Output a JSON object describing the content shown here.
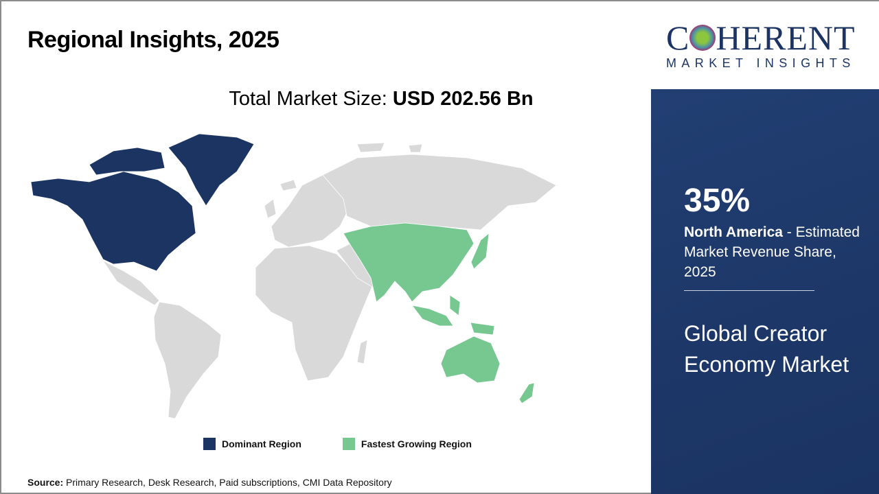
{
  "header": {
    "title": "Regional Insights, 2025"
  },
  "total": {
    "label": "Total Market Size: ",
    "value": "USD 202.56 Bn"
  },
  "map": {
    "regions": [
      {
        "name": "North America",
        "category": "dominant"
      },
      {
        "name": "Asia Pacific",
        "category": "fastest-growing"
      }
    ],
    "colors": {
      "dominant": "#1b3461",
      "fastest": "#77c791",
      "other": "#d9d9d9"
    }
  },
  "legend": [
    {
      "label": "Dominant Region",
      "color": "#1b3461"
    },
    {
      "label": "Fastest Growing Region",
      "color": "#77c791"
    }
  ],
  "source": {
    "label": "Source:",
    "text": " Primary Research, Desk Research, Paid subscriptions, CMI Data Repository"
  },
  "logo": {
    "line1": "COHERENT",
    "line2": "MARKET INSIGHTS"
  },
  "panel": {
    "percent": "35%",
    "region": "North America",
    "desc": " - Estimated Market Revenue Share, 2025",
    "market": "Global Creator Economy Market"
  }
}
